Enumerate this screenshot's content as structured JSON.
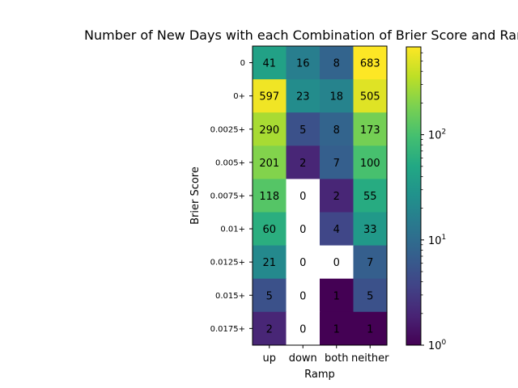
{
  "chart_data": {
    "type": "heatmap",
    "title": "Number of New Days with each Combination of Brier Score and Ramp",
    "xlabel": "Ramp",
    "ylabel": "Brier Score",
    "x_categories": [
      "up",
      "down",
      "both",
      "neither"
    ],
    "y_categories": [
      "0",
      "0+",
      "0.0025+",
      "0.005+",
      "0.0075+",
      "0.01+",
      "0.0125+",
      "0.015+",
      "0.0175+"
    ],
    "values": [
      [
        41,
        16,
        8,
        683
      ],
      [
        597,
        23,
        18,
        505
      ],
      [
        290,
        5,
        8,
        173
      ],
      [
        201,
        2,
        7,
        100
      ],
      [
        118,
        0,
        2,
        55
      ],
      [
        60,
        0,
        4,
        33
      ],
      [
        21,
        0,
        0,
        7
      ],
      [
        5,
        0,
        1,
        5
      ],
      [
        2,
        0,
        1,
        1
      ]
    ],
    "colormap": "viridis",
    "color_scale": "log",
    "color_range": [
      1,
      683
    ],
    "zero_cells_color": "#ffffff",
    "colorbar": {
      "scale": "log",
      "ticks": [
        {
          "value": 1,
          "label": "10",
          "exp": "0"
        },
        {
          "value": 10,
          "label": "10",
          "exp": "1"
        },
        {
          "value": 100,
          "label": "10",
          "exp": "2"
        }
      ]
    },
    "grid": false,
    "legend": "none"
  }
}
